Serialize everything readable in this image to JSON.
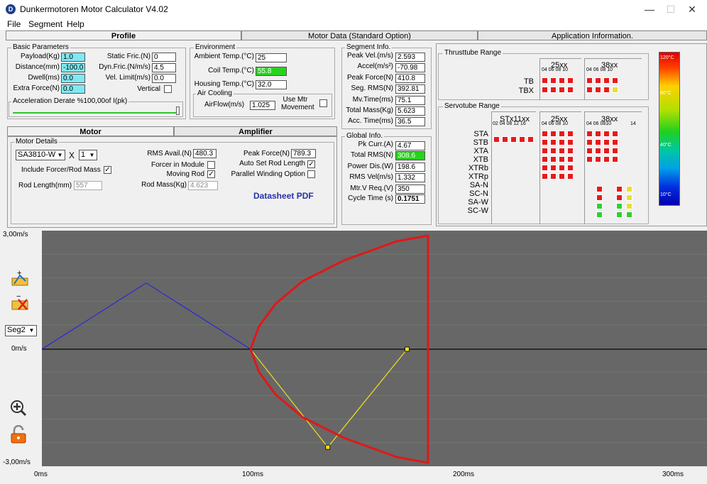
{
  "window": {
    "title": "Dunkermotoren Motor Calculator V4.02",
    "minimize": "—",
    "maximize": "☐",
    "close": "✕"
  },
  "menu": [
    "File",
    "Segment",
    "Help"
  ],
  "tabs": {
    "profile": "Profile",
    "motor_data": "Motor Data (Standard Option)",
    "app_info": "Application Information."
  },
  "basic": {
    "title": "Basic Parameters",
    "payload_label": "Payload(Kg)",
    "payload": "1.0",
    "distance_label": "Distance(mm)",
    "distance": "-100.0",
    "dwell_label": "Dwell(ms)",
    "dwell": "0.0",
    "extra_label": "Extra Force(N)",
    "extra": "0.0",
    "static_fric_label": "Static Fric.(N)",
    "static_fric": "0",
    "dyn_fric_label": "Dyn.Fric.(N/m/s)",
    "dyn_fric": "4.5",
    "vel_limit_label": "Vel. Limit(m/s)",
    "vel_limit": "0.0",
    "vertical_label": "Vertical",
    "accel_derate_label": "Acceleration Derate %100,00of I(pk)"
  },
  "environment": {
    "title": "Environment",
    "ambient_label": "Ambient Temp.(°C)",
    "ambient": "25",
    "coil_label": "Coil Temp.(°C)",
    "coil": "55.8",
    "housing_label": "Housing Temp.(°C)",
    "housing": "32.0",
    "air_title": "Air Cooling",
    "airflow_label": "AirFlow(m/s)",
    "airflow": "1.025",
    "use_mtr_label": "Use Mtr\nMovement"
  },
  "segment": {
    "title": "Segment Info.",
    "peak_vel_label": "Peak Vel.(m/s)",
    "peak_vel": "2.593",
    "accel_label": "Accel(m/s²)",
    "accel": "-70.98",
    "peak_force_label": "Peak Force(N)",
    "peak_force": "410.8",
    "seg_rms_label": "Seg. RMS(N)",
    "seg_rms": "392.81",
    "mv_time_label": "Mv.Time(ms)",
    "mv_time": "75.1",
    "total_mass_label": "Total Mass(Kg)",
    "total_mass": "5.623",
    "acc_time_label": "Acc. Time(ms)",
    "acc_time": "36.5"
  },
  "global": {
    "title": "Global Info.",
    "pk_curr_label": "Pk Curr.(A)",
    "pk_curr": "4.67",
    "total_rms_label": "Total RMS(N)",
    "total_rms": "308.6",
    "power_label": "Power Dis.(W)",
    "power": "198.6",
    "rms_vel_label": "RMS Vel(m/s)",
    "rms_vel": "1.332",
    "mtr_v_label": "Mtr.V Req.(V)",
    "mtr_v": "350",
    "cycle_label": "Cycle Time (s)",
    "cycle": "0.1751"
  },
  "motor_tabs": {
    "motor": "Motor",
    "amplifier": "Amplifier"
  },
  "motor": {
    "title": "Motor Details",
    "model": "SA3810-W",
    "x_label": "X",
    "count": "1",
    "include_label": "Include Forcer/Rod Mass",
    "rod_len_label": "Rod Length(mm)",
    "rod_len": "557",
    "rms_avail_label": "RMS Avail.(N)",
    "rms_avail": "480.3",
    "forcer_module_label": "Forcer in Module",
    "moving_rod_label": "Moving Rod",
    "rod_mass_label": "Rod Mass(Kg)",
    "rod_mass": "4.623",
    "peak_force_label": "Peak Force(N)",
    "peak_force": "789.3",
    "auto_set_label": "Auto Set Rod Length",
    "parallel_label": "Parallel Winding Option",
    "datasheet": "Datasheet PDF"
  },
  "thrust": {
    "title": "Thrusttube Range",
    "col1": "25xx",
    "col1_sub": "04 06 08 10",
    "col2": "38xx",
    "col2_sub": "04 06 08 10",
    "rows": [
      "TB",
      "TBX"
    ]
  },
  "servo": {
    "title": "Servotube Range",
    "col1": "STx11xx",
    "col1_sub": "02 04 08 12 16",
    "col2": "25xx",
    "col2_sub": "04 06 08 10",
    "col3": "38xx",
    "col3_sub": "04 06 0810",
    "col3_extra": "14",
    "rows": [
      "STA",
      "STB",
      "XTA",
      "XTB",
      "XTRb",
      "XTRp",
      "SA-N",
      "SC-N",
      "SA-W",
      "SC-W"
    ]
  },
  "colorbar": {
    "labels": [
      "120°C",
      "80°C",
      "40°C",
      "10°C"
    ]
  },
  "plot": {
    "y_top": "3,00m/s",
    "y_mid": "0m/s",
    "y_bot": "-3,00m/s",
    "x_ticks": [
      "0ms",
      "100ms",
      "200ms",
      "300ms"
    ],
    "segment_select": "Seg2"
  },
  "chart_data": {
    "type": "line",
    "xlabel": "",
    "ylabel": "",
    "xlim": [
      0,
      300
    ],
    "ylim": [
      -3,
      3
    ],
    "series": [
      {
        "color": "#2828d8",
        "x": [
          0,
          50,
          100
        ],
        "y": [
          0,
          1.75,
          0
        ]
      },
      {
        "color": "#f0e020",
        "x": [
          100,
          137,
          175
        ],
        "y": [
          0,
          -2.59,
          0
        ]
      },
      {
        "color": "#e01818",
        "x": [
          100,
          104,
          112,
          125,
          145,
          170,
          185,
          185,
          170,
          145,
          125,
          112,
          104,
          100
        ],
        "y": [
          0,
          -0.6,
          -1.2,
          -1.8,
          -2.35,
          -2.85,
          -3.0,
          3.0,
          2.85,
          2.35,
          1.8,
          1.2,
          0.6,
          0
        ]
      }
    ],
    "grid": true
  }
}
